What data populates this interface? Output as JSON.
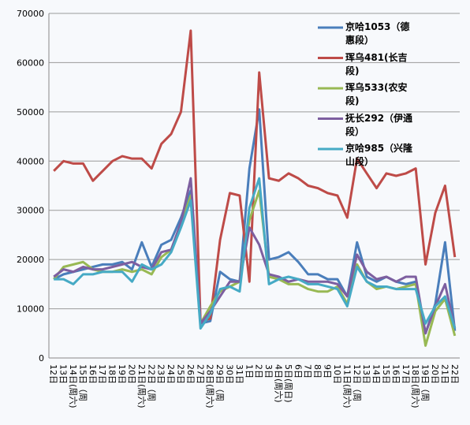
{
  "chart_data": {
    "type": "line",
    "categories": [
      "12日",
      "13日",
      "14日(周六)",
      "15日（周",
      "16日",
      "17日",
      "18日",
      "19日",
      "20日",
      "21日(周六)",
      "22日（周",
      "23日",
      "24日",
      "25日",
      "26日",
      "27日",
      "28日(周六)",
      "29日（周",
      "30日",
      "31日",
      "1日",
      "2日",
      "3日",
      "4日(周六)",
      "5日(周日)",
      "6日",
      "7日",
      "8日",
      "9日",
      "10日",
      "11日(周六)",
      "12日（周",
      "13日",
      "14日",
      "15日",
      "16日",
      "17日",
      "18日(周六)",
      "19日（周",
      "20日",
      "21日",
      "22日"
    ],
    "series": [
      {
        "name": "京哈1053（德惠段）",
        "color": "#4a7ebb",
        "values": [
          16000,
          17000,
          17500,
          18000,
          18500,
          19000,
          19000,
          19500,
          18000,
          23500,
          18500,
          23000,
          24000,
          28500,
          34000,
          7000,
          7500,
          17500,
          16000,
          15500,
          38500,
          50500,
          20000,
          20500,
          21500,
          19500,
          17000,
          17000,
          16000,
          16000,
          12500,
          23500,
          16500,
          15500,
          16500,
          15500,
          15000,
          15500,
          5000,
          11000,
          23500,
          5500
        ]
      },
      {
        "name": "珲乌481(长吉段)",
        "color": "#be4b48",
        "values": [
          38000,
          40000,
          39500,
          39500,
          36000,
          38000,
          40000,
          41000,
          40500,
          40500,
          38500,
          43500,
          45500,
          50000,
          66500,
          7500,
          8000,
          24000,
          33500,
          33000,
          15500,
          58000,
          36500,
          36000,
          37500,
          36500,
          35000,
          34500,
          33500,
          33000,
          28500,
          40500,
          37500,
          34500,
          37500,
          37000,
          37500,
          38500,
          19000,
          29500,
          35000,
          20500
        ]
      },
      {
        "name": "珲乌533(农安段)",
        "color": "#98b954",
        "values": [
          16000,
          18500,
          19000,
          19500,
          18000,
          17500,
          17500,
          18000,
          17500,
          18000,
          17000,
          20500,
          22000,
          27000,
          33000,
          7000,
          10500,
          13500,
          14500,
          15500,
          28000,
          34000,
          16500,
          16000,
          15000,
          15000,
          14000,
          13500,
          13500,
          14500,
          11000,
          19000,
          15500,
          14000,
          14500,
          14000,
          14500,
          15000,
          2500,
          9500,
          12000,
          4500
        ]
      },
      {
        "name": "抚长292（伊通段）",
        "color": "#7d5fa0",
        "values": [
          16500,
          18000,
          17500,
          18500,
          18000,
          18000,
          18500,
          19000,
          19500,
          18500,
          18000,
          21500,
          22000,
          27500,
          36500,
          7000,
          9500,
          12500,
          15500,
          15500,
          26500,
          23000,
          17000,
          16500,
          15500,
          16000,
          15500,
          15500,
          15500,
          15000,
          12500,
          21000,
          17500,
          16000,
          16500,
          15500,
          16500,
          16500,
          5000,
          10500,
          15000,
          6000
        ]
      },
      {
        "name": "京哈985（兴隆山段）",
        "color": "#46aac5",
        "values": [
          16000,
          16000,
          15000,
          17000,
          17000,
          17500,
          17500,
          17500,
          15500,
          19000,
          18000,
          19000,
          21500,
          26500,
          32000,
          6000,
          9000,
          14000,
          14500,
          13500,
          30500,
          36500,
          15000,
          16000,
          16500,
          16000,
          15000,
          15000,
          14500,
          14000,
          10500,
          18500,
          15500,
          14500,
          14500,
          14000,
          14000,
          14000,
          7000,
          10500,
          12500,
          6000
        ]
      }
    ],
    "ylim": [
      0,
      70000
    ],
    "yticks": [
      0,
      10000,
      20000,
      30000,
      40000,
      50000,
      60000,
      70000
    ],
    "grid": true,
    "legend": "top-right"
  }
}
